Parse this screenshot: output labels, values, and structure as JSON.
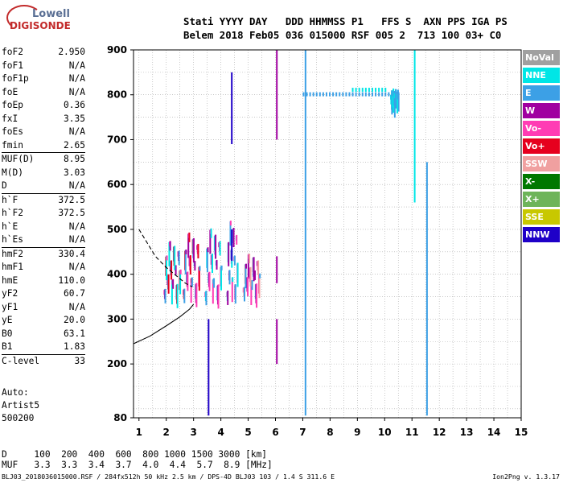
{
  "logo": {
    "line1": "Lowell",
    "line2": "DIGISONDE"
  },
  "header": {
    "line1": "Stati YYYY DAY   DDD HHMMSS P1   FFS S  AXN PPS IGA PS",
    "line2": "Belem 2018 Feb05 036 015000 RSF 005 2  713 100 03+ C0"
  },
  "params": {
    "group1": [
      {
        "name": "foF2",
        "value": "2.950"
      },
      {
        "name": "foF1",
        "value": "N/A"
      },
      {
        "name": "foF1p",
        "value": "N/A"
      },
      {
        "name": "foE",
        "value": "N/A"
      },
      {
        "name": "foEp",
        "value": "0.36"
      },
      {
        "name": "fxI",
        "value": "3.35"
      },
      {
        "name": "foEs",
        "value": "N/A"
      },
      {
        "name": "fmin",
        "value": "2.65"
      }
    ],
    "group2": [
      {
        "name": "MUF(D)",
        "value": "8.95"
      },
      {
        "name": "M(D)",
        "value": "3.03"
      },
      {
        "name": "D",
        "value": "N/A"
      }
    ],
    "group3": [
      {
        "name": "h`F",
        "value": "372.5"
      },
      {
        "name": "h`F2",
        "value": "372.5"
      },
      {
        "name": "h`E",
        "value": "N/A"
      },
      {
        "name": "h`Es",
        "value": "N/A"
      }
    ],
    "group4": [
      {
        "name": "hmF2",
        "value": "330.4"
      },
      {
        "name": "hmF1",
        "value": "N/A"
      },
      {
        "name": "hmE",
        "value": "110.0"
      },
      {
        "name": "yF2",
        "value": "60.7"
      },
      {
        "name": "yF1",
        "value": "N/A"
      },
      {
        "name": "yE",
        "value": "20.0"
      },
      {
        "name": "B0",
        "value": "63.1"
      },
      {
        "name": "B1",
        "value": "1.83"
      }
    ],
    "group5": [
      {
        "name": "C-level",
        "value": "33"
      }
    ]
  },
  "auto": {
    "line1": "Auto:",
    "line2": "Artist5",
    "line3": "500200"
  },
  "bottom_table": {
    "line1": "D     100  200  400  600  800 1000 1500 3000 [km]",
    "line2": "MUF   3.3  3.3  3.4  3.7  4.0  4.4  5.7  8.9 [MHz]"
  },
  "footer": {
    "left": "BLJ03_2018036015000.RSF / 284fx512h 50 kHz 2.5 km / DPS-4D BLJ03 103 / 1.4 S 311.6 E",
    "right": "Ion2Png v. 1.3.17"
  },
  "legend": [
    {
      "label": "NoVal",
      "color": "#a0a0a0"
    },
    {
      "label": "NNE",
      "color": "#00e6e6"
    },
    {
      "label": "E",
      "color": "#3ca0e6"
    },
    {
      "label": "W",
      "color": "#a000a0"
    },
    {
      "label": "Vo-",
      "color": "#ff3cb4"
    },
    {
      "label": "Vo+",
      "color": "#e6001e"
    },
    {
      "label": "SSW",
      "color": "#f0a0a0"
    },
    {
      "label": "X-",
      "color": "#007800"
    },
    {
      "label": "X+",
      "color": "#6eb45a"
    },
    {
      "label": "SSE",
      "color": "#c8c800"
    },
    {
      "label": "NNW",
      "color": "#1e00c8"
    }
  ],
  "chart_data": {
    "type": "scatter",
    "xlim": [
      0.8,
      15
    ],
    "ylim": [
      80,
      900
    ],
    "x_ticks": [
      1,
      2,
      3,
      4,
      5,
      6,
      7,
      8,
      9,
      10,
      11,
      12,
      13,
      14,
      15
    ],
    "y_ticks": [
      80,
      200,
      300,
      400,
      500,
      600,
      700,
      800,
      900
    ],
    "grid": true,
    "legend_placement": "right",
    "profile_curve": [
      [
        0.8,
        245
      ],
      [
        1.4,
        262
      ],
      [
        2.0,
        285
      ],
      [
        2.5,
        305
      ],
      [
        2.85,
        322
      ],
      [
        3.0,
        333
      ]
    ],
    "dashed_trace": [
      [
        1.0,
        500
      ],
      [
        1.3,
        470
      ],
      [
        1.6,
        440
      ],
      [
        2.0,
        415
      ],
      [
        2.4,
        395
      ],
      [
        2.7,
        380
      ],
      [
        2.95,
        372
      ]
    ],
    "echo_bands": [
      {
        "x": [
          1.9,
          2.5
        ],
        "y": [
          365,
          480
        ],
        "colors": [
          "#ff3cb4",
          "#a000a0",
          "#3ca0e6",
          "#e6001e",
          "#00e6e6"
        ]
      },
      {
        "x": [
          2.6,
          3.2
        ],
        "y": [
          365,
          500
        ],
        "colors": [
          "#ff3cb4",
          "#a000a0",
          "#3ca0e6",
          "#e6001e"
        ]
      },
      {
        "x": [
          3.4,
          4.0
        ],
        "y": [
          360,
          510
        ],
        "colors": [
          "#ff3cb4",
          "#a000a0",
          "#3ca0e6",
          "#00e6e6"
        ]
      },
      {
        "x": [
          4.2,
          4.6
        ],
        "y": [
          360,
          530
        ],
        "colors": [
          "#ff3cb4",
          "#3ca0e6",
          "#a000a0",
          "#00e6e6"
        ]
      },
      {
        "x": [
          4.8,
          5.4
        ],
        "y": [
          370,
          450
        ],
        "colors": [
          "#ff3cb4",
          "#a000a0",
          "#3ca0e6",
          "#f0a0a0"
        ]
      },
      {
        "x": [
          10.2,
          10.5
        ],
        "y": [
          800,
          815
        ],
        "colors": [
          "#3ca0e6",
          "#00e6e6"
        ]
      }
    ],
    "vertical_streaks": [
      {
        "x": 3.55,
        "y": [
          85,
          300
        ],
        "color": "#1e00c8"
      },
      {
        "x": 4.4,
        "y": [
          690,
          850
        ],
        "color": "#1e00c8"
      },
      {
        "x": 4.4,
        "y": [
          430,
          500
        ],
        "color": "#1e00c8"
      },
      {
        "x": 6.05,
        "y": [
          700,
          900
        ],
        "color": "#a000a0"
      },
      {
        "x": 6.05,
        "y": [
          380,
          440
        ],
        "color": "#a000a0"
      },
      {
        "x": 6.05,
        "y": [
          200,
          300
        ],
        "color": "#a000a0"
      },
      {
        "x": 7.1,
        "y": [
          85,
          900
        ],
        "color": "#3ca0e6"
      },
      {
        "x": 11.55,
        "y": [
          85,
          650
        ],
        "color": "#3ca0e6"
      },
      {
        "x": 11.1,
        "y": [
          560,
          900
        ],
        "color": "#00e6e6"
      }
    ],
    "horizontal_clusters": [
      {
        "x": [
          7.0,
          10.3
        ],
        "y": 802,
        "color": "#3ca0e6"
      },
      {
        "x": [
          8.8,
          10.0
        ],
        "y": 812,
        "color": "#00e6e6"
      }
    ]
  }
}
